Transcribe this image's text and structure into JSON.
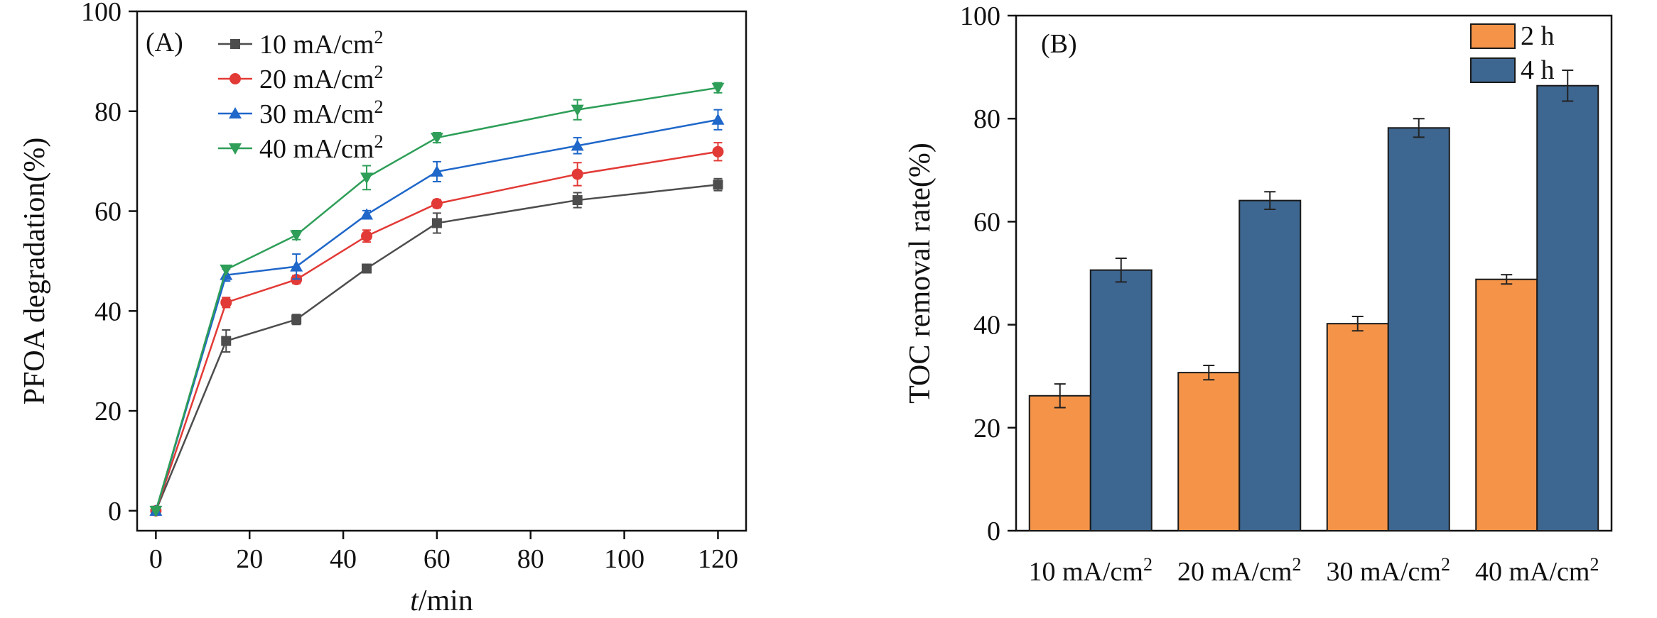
{
  "chart_data": [
    {
      "type": "line",
      "panel_label": "(A)",
      "xlabel_italic": "t",
      "xlabel_rest": "/min",
      "ylabel": "PFOA degradation(%)",
      "xlim": [
        -4,
        126
      ],
      "ylim": [
        -4,
        100
      ],
      "xticks": [
        0,
        20,
        40,
        60,
        80,
        100,
        120
      ],
      "yticks": [
        0,
        20,
        40,
        60,
        80,
        100
      ],
      "legend_position": "top-left",
      "x": [
        0,
        15,
        30,
        45,
        60,
        90,
        120
      ],
      "series": [
        {
          "name": "10 mA/cm",
          "sup": "2",
          "color": "#4d4d4d",
          "marker": "square",
          "values": [
            0,
            34.0,
            38.3,
            48.5,
            57.6,
            62.2,
            65.3
          ],
          "errors": [
            0.5,
            2.2,
            1.0,
            0.8,
            2.0,
            1.5,
            1.2
          ]
        },
        {
          "name": "20 mA/cm",
          "sup": "2",
          "color": "#e23a36",
          "marker": "circle",
          "values": [
            0,
            41.7,
            46.3,
            55.0,
            61.5,
            67.4,
            71.9
          ],
          "errors": [
            0.5,
            1.0,
            0.8,
            1.2,
            0.8,
            2.3,
            1.8
          ]
        },
        {
          "name": "30 mA/cm",
          "sup": "2",
          "color": "#1f67c9",
          "marker": "triangle-up",
          "values": [
            0,
            47.2,
            48.9,
            59.3,
            67.9,
            73.1,
            78.3
          ],
          "errors": [
            0.5,
            1.2,
            2.5,
            0.8,
            2.0,
            1.6,
            2.0
          ]
        },
        {
          "name": "40 mA/cm",
          "sup": "2",
          "color": "#2e9e58",
          "marker": "triangle-down",
          "values": [
            0,
            48.3,
            55.2,
            66.7,
            74.7,
            80.3,
            84.7
          ],
          "errors": [
            0.5,
            0.6,
            0.9,
            2.4,
            1.0,
            2.0,
            1.0
          ]
        }
      ]
    },
    {
      "type": "bar",
      "panel_label": "(B)",
      "ylabel": "TOC removal rate(%)",
      "ylim": [
        0,
        100
      ],
      "yticks": [
        0,
        20,
        40,
        60,
        80,
        100
      ],
      "legend_position": "top-right",
      "categories": [
        {
          "text": "10 mA/cm",
          "sup": "2"
        },
        {
          "text": "20 mA/cm",
          "sup": "2"
        },
        {
          "text": "30 mA/cm",
          "sup": "2"
        },
        {
          "text": "40 mA/cm",
          "sup": "2"
        }
      ],
      "series": [
        {
          "name": "2 h",
          "color": "#f59448",
          "values": [
            26.2,
            30.7,
            40.2,
            48.8
          ],
          "errors": [
            2.3,
            1.4,
            1.4,
            0.9
          ]
        },
        {
          "name": "4 h",
          "color": "#3d6690",
          "values": [
            50.6,
            64.1,
            78.2,
            86.4
          ],
          "errors": [
            2.3,
            1.7,
            1.8,
            3.0
          ]
        }
      ]
    }
  ]
}
